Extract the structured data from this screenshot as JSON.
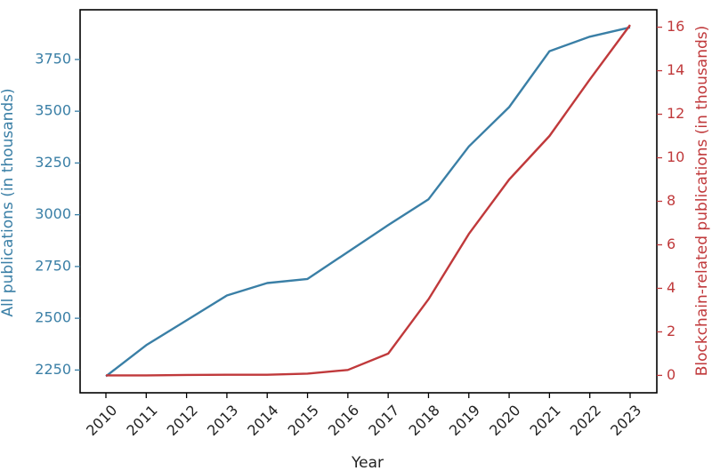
{
  "chart_data": {
    "type": "line",
    "xlabel": "Year",
    "x": [
      "2010",
      "2011",
      "2012",
      "2013",
      "2014",
      "2015",
      "2016",
      "2017",
      "2018",
      "2019",
      "2020",
      "2021",
      "2022",
      "2023"
    ],
    "left_axis": {
      "label": "All publications (in thousands)",
      "color": "#3a7fa6",
      "ylim": [
        2140,
        3990
      ],
      "ticks": [
        2250,
        2500,
        2750,
        3000,
        3250,
        3500,
        3750
      ]
    },
    "right_axis": {
      "label": "Blockchain-related publications (in thousands)",
      "color": "#c0393b",
      "ylim": [
        -0.8,
        16.8
      ],
      "ticks": [
        0,
        2,
        4,
        6,
        8,
        10,
        12,
        14,
        16
      ]
    },
    "series": [
      {
        "axis": "left",
        "color": "#3a7fa6",
        "values": [
          2220,
          2370,
          2490,
          2610,
          2670,
          2690,
          2820,
          2950,
          3075,
          3330,
          3520,
          3790,
          3860,
          3905
        ]
      },
      {
        "axis": "right",
        "color": "#c0393b",
        "values": [
          0,
          0,
          0.02,
          0.03,
          0.03,
          0.08,
          0.25,
          1.0,
          3.5,
          6.5,
          9.0,
          11.0,
          13.6,
          16.1
        ]
      }
    ]
  }
}
